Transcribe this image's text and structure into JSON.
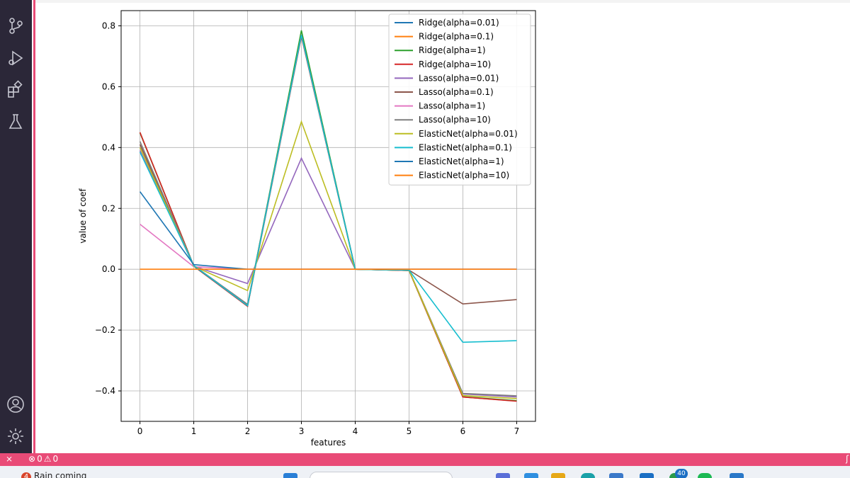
{
  "activity_bar": {
    "icons": [
      "source-control-icon",
      "run-debug-icon",
      "extensions-icon",
      "testing-icon",
      "account-icon",
      "settings-gear-icon"
    ]
  },
  "status_bar": {
    "errors": "0",
    "warnings": "0"
  },
  "taskbar": {
    "weather_badge": "4",
    "weather_text": "Rain coming",
    "notification_count": "40"
  },
  "chart_data": {
    "type": "line",
    "xlabel": "features",
    "ylabel": "value of coef",
    "x": [
      0,
      1,
      2,
      3,
      4,
      5,
      6,
      7
    ],
    "xticks": [
      "0",
      "1",
      "2",
      "3",
      "4",
      "5",
      "6",
      "7"
    ],
    "yticks": [
      "0.8",
      "0.6",
      "0.4",
      "0.2",
      "0.0",
      "−0.2",
      "−0.4"
    ],
    "ylim": [
      -0.5,
      0.85
    ],
    "xlim": [
      -0.35,
      7.35
    ],
    "grid": true,
    "legend_position": "upper-right",
    "series": [
      {
        "name": "Ridge(alpha=0.01)",
        "color": "#1f77b4",
        "values": [
          0.45,
          0.01,
          -0.12,
          0.77,
          0.0,
          -0.004,
          -0.42,
          -0.433
        ]
      },
      {
        "name": "Ridge(alpha=0.1)",
        "color": "#ff7f0e",
        "values": [
          0.45,
          0.01,
          -0.12,
          0.77,
          0.0,
          -0.004,
          -0.42,
          -0.433
        ]
      },
      {
        "name": "Ridge(alpha=1)",
        "color": "#2ca02c",
        "values": [
          0.448,
          0.011,
          -0.118,
          0.785,
          0.0,
          -0.004,
          -0.419,
          -0.432
        ]
      },
      {
        "name": "Ridge(alpha=10)",
        "color": "#d62728",
        "values": [
          0.45,
          0.01,
          -0.122,
          0.765,
          0.0,
          -0.004,
          -0.42,
          -0.434
        ]
      },
      {
        "name": "Lasso(alpha=0.01)",
        "color": "#9467bd",
        "values": [
          0.39,
          0.01,
          -0.047,
          0.365,
          0.0,
          -0.003,
          -0.41,
          -0.42
        ]
      },
      {
        "name": "Lasso(alpha=0.1)",
        "color": "#8c564b",
        "values": [
          0.41,
          0.01,
          -0.12,
          0.77,
          0.0,
          -0.003,
          -0.114,
          -0.1
        ]
      },
      {
        "name": "Lasso(alpha=1)",
        "color": "#e377c2",
        "values": [
          0.148,
          0.008,
          0.0,
          0.0,
          0.0,
          0.0,
          0.0,
          0.0
        ]
      },
      {
        "name": "Lasso(alpha=10)",
        "color": "#7f7f7f",
        "values": [
          0.42,
          0.012,
          -0.115,
          0.77,
          0.0,
          -0.003,
          -0.408,
          -0.416
        ]
      },
      {
        "name": "ElasticNet(alpha=0.01)",
        "color": "#bcbd22",
        "values": [
          0.4,
          0.01,
          -0.07,
          0.485,
          0.0,
          -0.003,
          -0.415,
          -0.425
        ]
      },
      {
        "name": "ElasticNet(alpha=0.1)",
        "color": "#17becf",
        "values": [
          0.385,
          0.012,
          -0.12,
          0.77,
          0.0,
          -0.003,
          -0.24,
          -0.235
        ]
      },
      {
        "name": "ElasticNet(alpha=1)",
        "color": "#1f77b4",
        "values": [
          0.255,
          0.015,
          0.0,
          0.0,
          0.0,
          0.0,
          0.0,
          0.0
        ]
      },
      {
        "name": "ElasticNet(alpha=10)",
        "color": "#ff7f0e",
        "values": [
          0.0,
          0.0,
          0.0,
          0.0,
          0.0,
          0.0,
          0.0,
          0.0
        ]
      }
    ]
  }
}
